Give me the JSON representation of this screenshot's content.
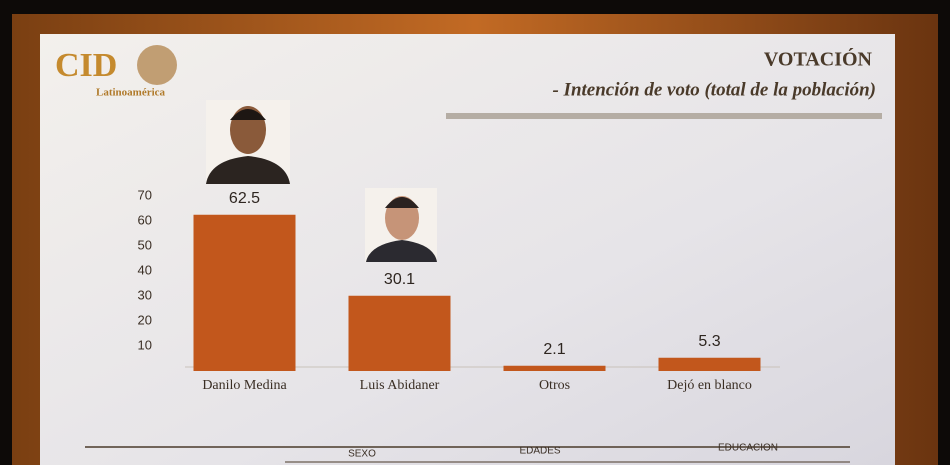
{
  "logo": {
    "name": "CID",
    "region": "Latinoamérica"
  },
  "chart_data": {
    "type": "bar",
    "title": "VOTACIÓN",
    "subtitle": "- Intención de voto (total de la población)",
    "categories": [
      "Danilo Medina",
      "Luis Abidaner",
      "Otros",
      "Dejó en blanco"
    ],
    "values": [
      62.5,
      30.1,
      2.1,
      5.3
    ],
    "color": "#c2571c",
    "ylim": [
      0,
      70
    ],
    "yticks": [
      10,
      20,
      30,
      40,
      50,
      60,
      70
    ],
    "grid": false
  },
  "table": {
    "headers": [
      "SEXO",
      "EDADES",
      "EDUCACION"
    ]
  }
}
